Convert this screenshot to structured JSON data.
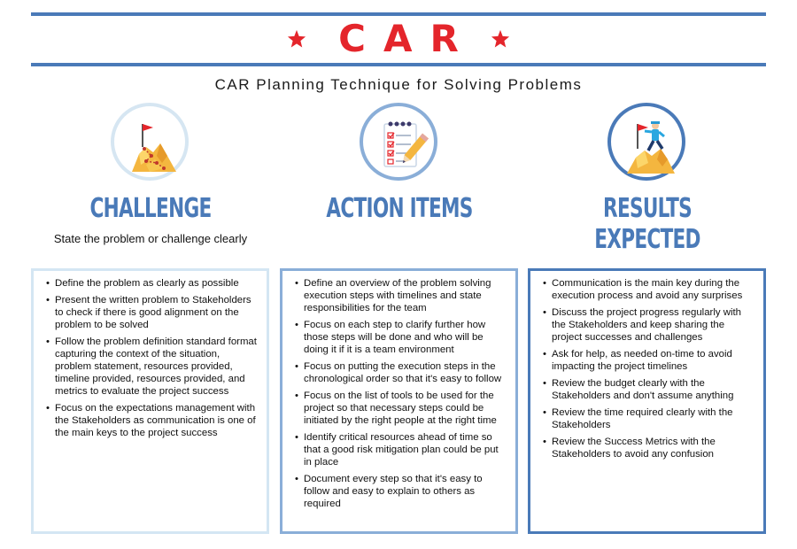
{
  "colors": {
    "accent_blue": "#4a7ab8",
    "accent_red": "#e4252b",
    "box1_border": "#d4e6f3",
    "box2_border": "#8aaed8",
    "box3_border": "#4a7ab8",
    "circle1_border": "#d6e6f2",
    "circle2_border": "#8aaed8",
    "circle3_border": "#4a7ab8"
  },
  "header": {
    "title": "CAR",
    "subtitle": "CAR Planning Technique for Solving Problems",
    "star_icon": "star-icon"
  },
  "columns": [
    {
      "title": "CHALLENGE",
      "description": "State the problem or challenge clearly",
      "icon": "mountain-flag-path-icon",
      "items": [
        "Define the problem as clearly as possible",
        "Present the written problem to Stakeholders to check if there is good alignment on the problem to be solved",
        "Follow the problem definition standard format capturing the context of the situation, problem statement, resources provided, timeline provided, resources provided, and metrics to evaluate the project success",
        "Focus on the expectations management with the Stakeholders as communication is one of the main keys to the project success"
      ]
    },
    {
      "title": "ACTION ITEMS",
      "description": "",
      "icon": "checklist-pencil-icon",
      "items": [
        "Define an overview of the problem solving execution steps with timelines and state responsibilities for the team",
        "Focus on each step to clarify further how those steps will be done and who will be doing it if it is a team environment",
        "Focus on putting the execution steps in the chronological order so that it's easy to follow",
        "Focus on the list of tools to be used for the project so that necessary steps could be initiated by the right people at the right time",
        "Identify critical resources ahead of time so that a good risk mitigation plan could be put in place",
        "Document every step so that it's easy to follow and easy to explain to others as required"
      ]
    },
    {
      "title": "RESULTS EXPECTED",
      "description": "",
      "icon": "climber-summit-flag-icon",
      "items": [
        "Communication is the main key during the execution process and avoid any surprises",
        "Discuss the project progress regularly with the Stakeholders and keep sharing the project successes and challenges",
        "Ask for help, as needed on-time to avoid impacting the project timelines",
        "Review the budget clearly with the Stakeholders and don't assume anything",
        "Review the time required clearly with the Stakeholders",
        "Review the Success Metrics with the Stakeholders to avoid any confusion"
      ]
    }
  ]
}
